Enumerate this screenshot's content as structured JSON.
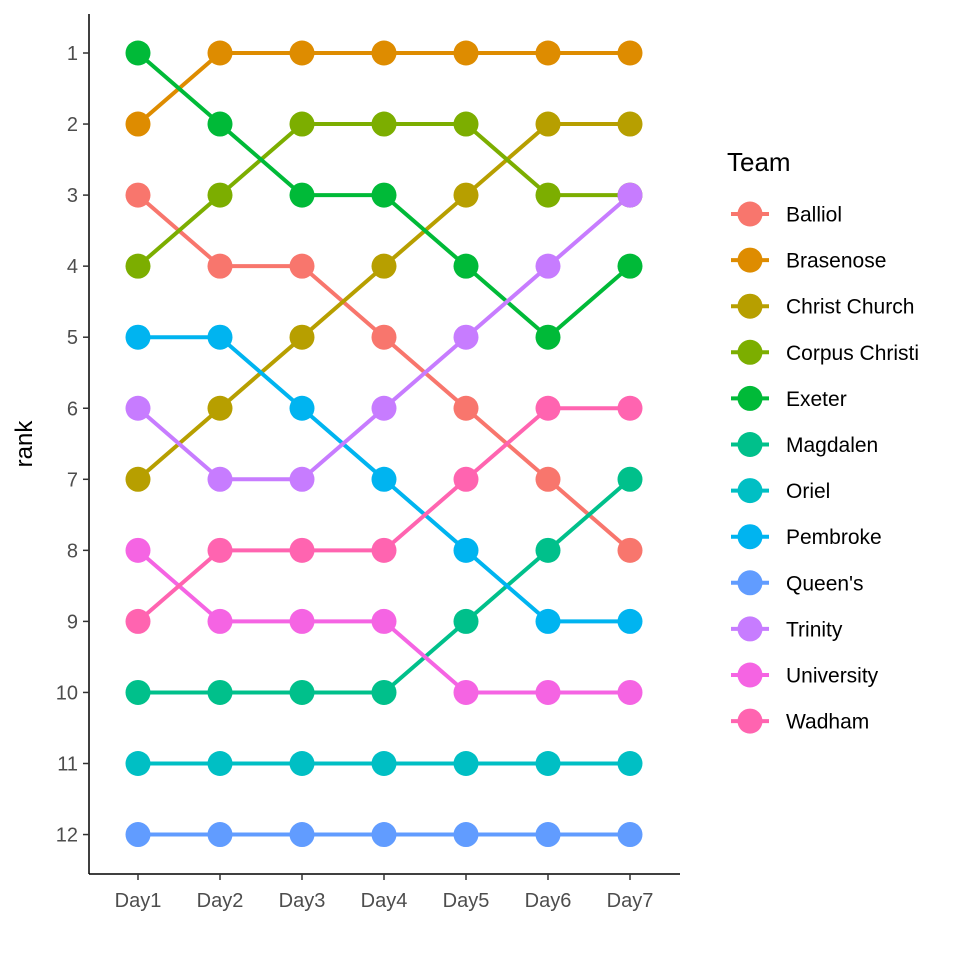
{
  "chart_data": {
    "type": "line",
    "title": "",
    "xlabel": "",
    "ylabel": "rank",
    "categories": [
      "Day1",
      "Day2",
      "Day3",
      "Day4",
      "Day5",
      "Day6",
      "Day7"
    ],
    "y_ticks": [
      "1",
      "2",
      "3",
      "4",
      "5",
      "6",
      "7",
      "8",
      "9",
      "10",
      "11",
      "12"
    ],
    "ylim": [
      12.55,
      0.45
    ],
    "y_reversed": true,
    "grid": false,
    "legend": {
      "title": "Team",
      "placement": "right"
    },
    "series": [
      {
        "name": "Balliol",
        "color": "#F8766D",
        "values": [
          3,
          4,
          4,
          5,
          6,
          7,
          8
        ]
      },
      {
        "name": "Brasenose",
        "color": "#DE8C00",
        "values": [
          2,
          1,
          1,
          1,
          1,
          1,
          1
        ]
      },
      {
        "name": "Christ Church",
        "color": "#B79F00",
        "values": [
          7,
          6,
          5,
          4,
          3,
          2,
          2
        ]
      },
      {
        "name": "Corpus Christi",
        "color": "#7CAE00",
        "values": [
          4,
          3,
          2,
          2,
          2,
          3,
          3
        ]
      },
      {
        "name": "Exeter",
        "color": "#00BA38",
        "values": [
          1,
          2,
          3,
          3,
          4,
          5,
          4
        ]
      },
      {
        "name": "Magdalen",
        "color": "#00C08B",
        "values": [
          10,
          10,
          10,
          10,
          9,
          8,
          7
        ]
      },
      {
        "name": "Oriel",
        "color": "#00BFC4",
        "values": [
          11,
          11,
          11,
          11,
          11,
          11,
          11
        ]
      },
      {
        "name": "Pembroke",
        "color": "#00B4F0",
        "values": [
          5,
          5,
          6,
          7,
          8,
          9,
          9
        ]
      },
      {
        "name": "Queen's",
        "color": "#619CFF",
        "values": [
          12,
          12,
          12,
          12,
          12,
          12,
          12
        ]
      },
      {
        "name": "Trinity",
        "color": "#C77CFF",
        "values": [
          6,
          7,
          7,
          6,
          5,
          4,
          3
        ]
      },
      {
        "name": "University",
        "color": "#F564E3",
        "values": [
          8,
          9,
          9,
          9,
          10,
          10,
          10
        ]
      },
      {
        "name": "Wadham",
        "color": "#FF64B0",
        "values": [
          9,
          8,
          8,
          8,
          7,
          6,
          6
        ]
      }
    ]
  }
}
